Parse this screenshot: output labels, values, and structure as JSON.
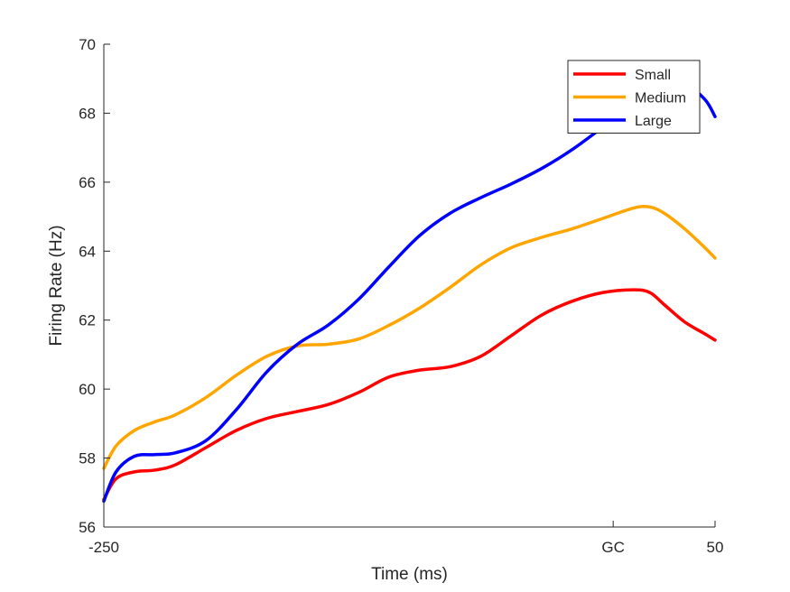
{
  "chart_data": {
    "type": "line",
    "title": "",
    "xlabel": "Time (ms)",
    "ylabel": "Firing Rate (Hz)",
    "xlim": [
      -250,
      50
    ],
    "ylim": [
      56,
      70
    ],
    "xticks": [
      {
        "value": -250,
        "label": "-250"
      },
      {
        "value": 0,
        "label": "GC"
      },
      {
        "value": 50,
        "label": "50"
      }
    ],
    "yticks": [
      56,
      58,
      60,
      62,
      64,
      66,
      68,
      70
    ],
    "grid": false,
    "legend_position": "top-right",
    "series": [
      {
        "name": "Small",
        "color": "#ff0000",
        "points": [
          [
            -250,
            56.8
          ],
          [
            -244,
            57.4
          ],
          [
            -235,
            57.6
          ],
          [
            -225,
            57.65
          ],
          [
            -215,
            57.8
          ],
          [
            -200,
            58.3
          ],
          [
            -185,
            58.8
          ],
          [
            -170,
            59.15
          ],
          [
            -155,
            59.35
          ],
          [
            -140,
            59.55
          ],
          [
            -125,
            59.9
          ],
          [
            -110,
            60.35
          ],
          [
            -95,
            60.55
          ],
          [
            -80,
            60.65
          ],
          [
            -65,
            60.95
          ],
          [
            -50,
            61.55
          ],
          [
            -35,
            62.15
          ],
          [
            -20,
            62.55
          ],
          [
            -5,
            62.8
          ],
          [
            10,
            62.88
          ],
          [
            18,
            62.8
          ],
          [
            25,
            62.45
          ],
          [
            35,
            61.95
          ],
          [
            45,
            61.6
          ],
          [
            50,
            61.42
          ]
        ]
      },
      {
        "name": "Medium",
        "color": "#ffa500",
        "points": [
          [
            -250,
            57.7
          ],
          [
            -244,
            58.35
          ],
          [
            -235,
            58.8
          ],
          [
            -225,
            59.05
          ],
          [
            -215,
            59.25
          ],
          [
            -200,
            59.75
          ],
          [
            -185,
            60.4
          ],
          [
            -170,
            60.95
          ],
          [
            -155,
            61.25
          ],
          [
            -140,
            61.3
          ],
          [
            -125,
            61.45
          ],
          [
            -110,
            61.85
          ],
          [
            -95,
            62.35
          ],
          [
            -80,
            62.95
          ],
          [
            -65,
            63.6
          ],
          [
            -50,
            64.1
          ],
          [
            -35,
            64.4
          ],
          [
            -20,
            64.65
          ],
          [
            -5,
            64.95
          ],
          [
            10,
            65.25
          ],
          [
            18,
            65.28
          ],
          [
            25,
            65.1
          ],
          [
            35,
            64.65
          ],
          [
            45,
            64.1
          ],
          [
            50,
            63.8
          ]
        ]
      },
      {
        "name": "Large",
        "color": "#0000ff",
        "points": [
          [
            -250,
            56.75
          ],
          [
            -244,
            57.6
          ],
          [
            -235,
            58.05
          ],
          [
            -225,
            58.1
          ],
          [
            -215,
            58.15
          ],
          [
            -200,
            58.5
          ],
          [
            -185,
            59.4
          ],
          [
            -170,
            60.5
          ],
          [
            -155,
            61.3
          ],
          [
            -140,
            61.85
          ],
          [
            -125,
            62.6
          ],
          [
            -110,
            63.55
          ],
          [
            -95,
            64.45
          ],
          [
            -80,
            65.1
          ],
          [
            -65,
            65.55
          ],
          [
            -50,
            65.95
          ],
          [
            -35,
            66.4
          ],
          [
            -20,
            66.95
          ],
          [
            -5,
            67.6
          ],
          [
            10,
            68.25
          ],
          [
            18,
            68.55
          ],
          [
            25,
            68.75
          ],
          [
            35,
            68.85
          ],
          [
            45,
            68.4
          ],
          [
            50,
            67.9
          ]
        ]
      }
    ]
  }
}
